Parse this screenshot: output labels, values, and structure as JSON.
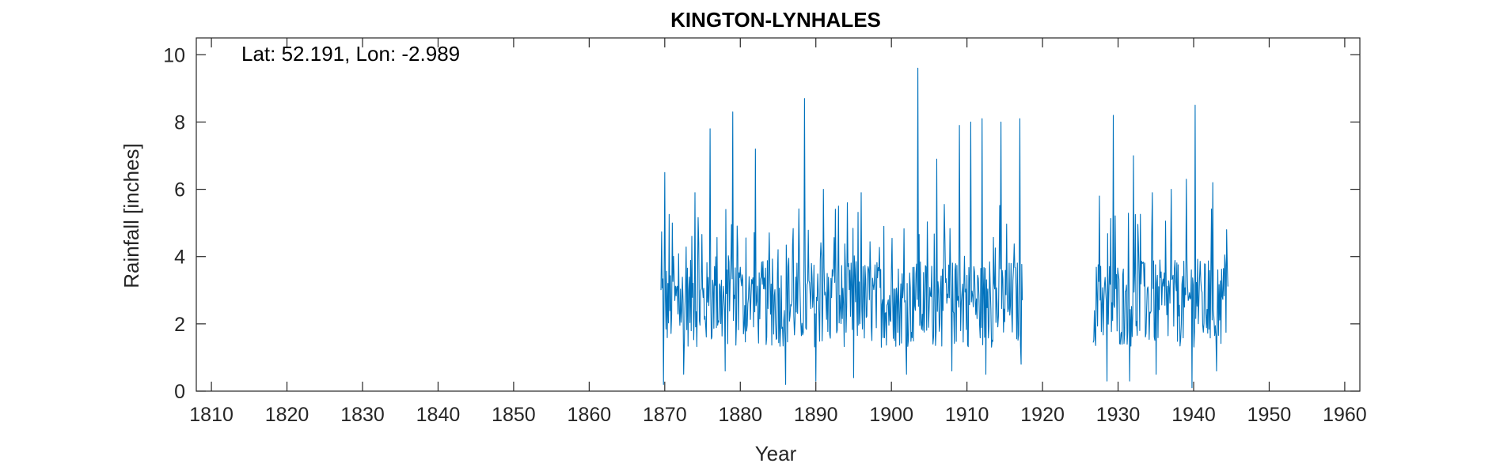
{
  "chart_data": {
    "type": "line",
    "title": "KINGTON-LYNHALES",
    "xlabel": "Year",
    "ylabel": "Rainfall [inches]",
    "annotation": "Lat: 52.191, Lon: -2.989",
    "xlim": [
      1808,
      1962
    ],
    "ylim": [
      0,
      10.5
    ],
    "xticks": [
      1810,
      1820,
      1830,
      1840,
      1850,
      1860,
      1870,
      1880,
      1890,
      1900,
      1910,
      1920,
      1930,
      1940,
      1950,
      1960
    ],
    "yticks": [
      0,
      2,
      4,
      6,
      8,
      10
    ],
    "grid": false,
    "legend": "none",
    "series_color": "#0072BD",
    "series": [
      {
        "segments": [
          {
            "x_start": 1869.5,
            "x_end": 1917.3,
            "peaks": [
              [
                1870.0,
                6.5
              ],
              [
                1871.0,
                5.0
              ],
              [
                1874.0,
                5.9
              ],
              [
                1876.0,
                7.8
              ],
              [
                1879.0,
                8.3
              ],
              [
                1882.0,
                7.2
              ],
              [
                1888.5,
                8.7
              ],
              [
                1891.0,
                6.0
              ],
              [
                1893.0,
                5.5
              ],
              [
                1896.0,
                5.9
              ],
              [
                1899.0,
                4.9
              ],
              [
                1903.5,
                9.6
              ],
              [
                1906.0,
                6.9
              ],
              [
                1909.0,
                7.9
              ],
              [
                1910.5,
                8.0
              ],
              [
                1912.0,
                8.1
              ],
              [
                1914.5,
                8.0
              ],
              [
                1917.0,
                8.1
              ]
            ],
            "troughs": [
              [
                1869.8,
                0.2
              ],
              [
                1872.5,
                0.5
              ],
              [
                1878.0,
                0.6
              ],
              [
                1886.0,
                0.2
              ],
              [
                1890.0,
                0.3
              ],
              [
                1895.0,
                0.4
              ],
              [
                1902.0,
                0.5
              ],
              [
                1908.0,
                0.6
              ],
              [
                1912.5,
                0.5
              ],
              [
                1917.2,
                0.8
              ]
            ]
          },
          {
            "x_start": 1926.7,
            "x_end": 1944.5,
            "peaks": [
              [
                1927.5,
                5.8
              ],
              [
                1929.4,
                8.2
              ],
              [
                1932.0,
                7.0
              ],
              [
                1934.5,
                5.9
              ],
              [
                1937.0,
                6.0
              ],
              [
                1939.0,
                6.3
              ],
              [
                1940.2,
                8.5
              ],
              [
                1942.5,
                6.2
              ],
              [
                1944.4,
                4.8
              ]
            ],
            "troughs": [
              [
                1928.5,
                0.3
              ],
              [
                1931.5,
                0.3
              ],
              [
                1935.0,
                0.5
              ],
              [
                1939.8,
                0.1
              ],
              [
                1943.0,
                0.6
              ]
            ]
          }
        ]
      }
    ]
  }
}
